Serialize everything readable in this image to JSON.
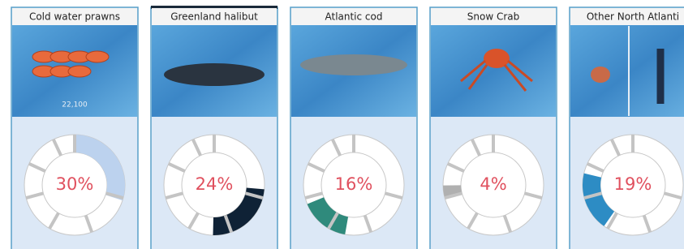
{
  "cards": [
    {
      "title": "Cold water prawns",
      "caption": "22,100",
      "share": 30,
      "share_label": "30%",
      "color": "#bcd2ee"
    },
    {
      "title": "Greenland halibut",
      "share": 24,
      "share_label": "24%",
      "color": "#0f2236"
    },
    {
      "title": "Atlantic cod",
      "share": 16,
      "share_label": "16%",
      "color": "#2f8a7c"
    },
    {
      "title": "Snow Crab",
      "share": 4,
      "share_label": "4%",
      "color": "#b0b0b0"
    },
    {
      "title": "Other North Atlanti",
      "share": 19,
      "share_label": "19%",
      "color": "#2d8cc4"
    }
  ]
}
